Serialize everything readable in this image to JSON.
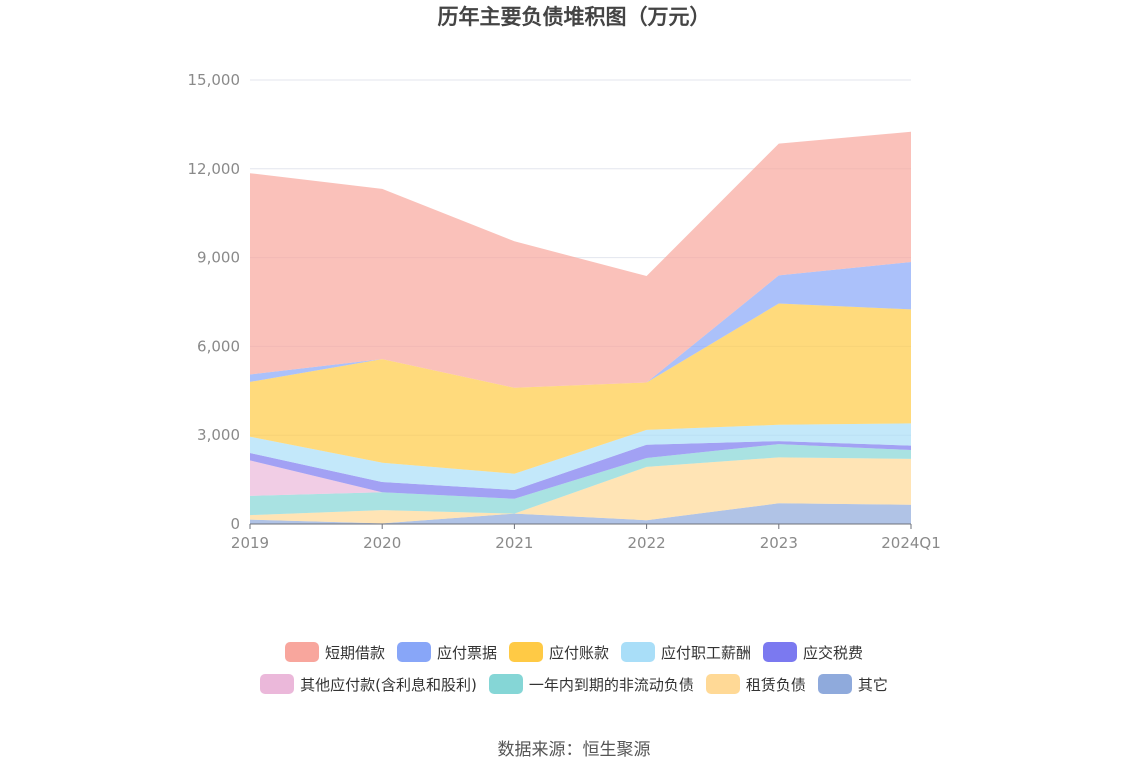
{
  "chart_data": {
    "type": "area",
    "stacked": true,
    "title": "历年主要负债堆积图（万元）",
    "source": "数据来源：恒生聚源",
    "categories": [
      "2019",
      "2020",
      "2021",
      "2022",
      "2023",
      "2024Q1"
    ],
    "ylim": [
      0,
      15000
    ],
    "yticks": [
      0,
      3000,
      6000,
      9000,
      12000,
      15000
    ],
    "ytick_labels": [
      "0",
      "3,000",
      "6,000",
      "9,000",
      "12,000",
      "15,000"
    ],
    "grid": true,
    "legend_position": "bottom",
    "series": [
      {
        "name": "其它",
        "color": "#8FAADC",
        "values": [
          150,
          20,
          350,
          130,
          700,
          650
        ]
      },
      {
        "name": "租赁负债",
        "color": "#FFD996",
        "values": [
          150,
          450,
          0,
          1800,
          1550,
          1550
        ]
      },
      {
        "name": "一年内到期的非流动负债",
        "color": "#85D6D6",
        "values": [
          650,
          600,
          500,
          300,
          450,
          300
        ]
      },
      {
        "name": "其他应付款(含利息和股利)",
        "color": "#EBB8DA",
        "values": [
          1200,
          0,
          0,
          0,
          0,
          0
        ]
      },
      {
        "name": "应交税费",
        "color": "#7B79F0",
        "values": [
          250,
          350,
          300,
          450,
          100,
          150
        ]
      },
      {
        "name": "应付职工薪酬",
        "color": "#A9DEF8",
        "values": [
          550,
          650,
          550,
          500,
          550,
          750
        ]
      },
      {
        "name": "应付账款",
        "color": "#FFCA45",
        "values": [
          1850,
          3500,
          2900,
          1600,
          4100,
          3850
        ]
      },
      {
        "name": "应付票据",
        "color": "#88A6F8",
        "values": [
          250,
          0,
          0,
          0,
          950,
          1600
        ]
      },
      {
        "name": "短期借款",
        "color": "#F8A69D",
        "values": [
          6800,
          5750,
          4950,
          3600,
          4450,
          4400
        ]
      }
    ],
    "legend_rows": [
      [
        "短期借款",
        "应付票据",
        "应付账款",
        "应付职工薪酬",
        "应交税费"
      ],
      [
        "其他应付款(含利息和股利)",
        "一年内到期的非流动负债",
        "租赁负债",
        "其它"
      ]
    ]
  }
}
